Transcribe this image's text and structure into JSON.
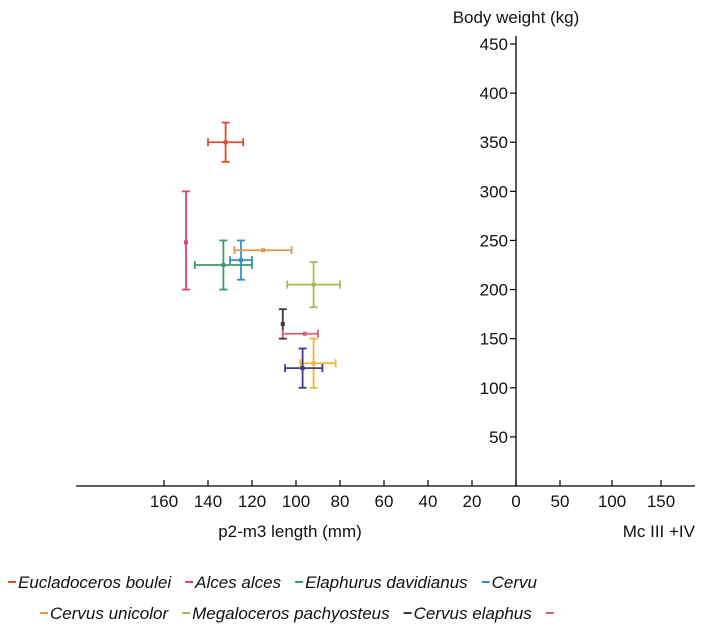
{
  "chart_data": {
    "type": "scatter",
    "x_axis_label": "p2-m3 length (mm)",
    "x_axis_label_right": "Mc III +IV",
    "y_axis_label": "Body weight (kg)",
    "x_tick_labels": [
      "160",
      "140",
      "120",
      "100",
      "80",
      "60",
      "40",
      "20",
      "0"
    ],
    "x_right_tick_labels": [
      "50",
      "100",
      "150"
    ],
    "y_tick_labels": [
      "50",
      "100",
      "150",
      "200",
      "250",
      "300",
      "350",
      "400",
      "450"
    ],
    "xlim": [
      175,
      0
    ],
    "ylim": [
      0,
      450
    ],
    "grid": false,
    "legend_position": "bottom",
    "series": [
      {
        "name": "Eucladoceros boulei",
        "color": "#d94f2b",
        "x": 132,
        "y": 350,
        "x_err": [
          140,
          124
        ],
        "y_err": [
          330,
          370
        ]
      },
      {
        "name": "Alces alces",
        "color": "#e0447f",
        "x": 150,
        "y": 248,
        "x_err": [
          150,
          150
        ],
        "y_err": [
          200,
          300
        ]
      },
      {
        "name": "Elaphurus davidianus",
        "color": "#3a9a6a",
        "x": 133,
        "y": 225,
        "x_err": [
          146,
          120
        ],
        "y_err": [
          200,
          250
        ]
      },
      {
        "name": "Cervu",
        "color": "#2f93c9",
        "x": 125,
        "y": 230,
        "x_err": [
          130,
          120
        ],
        "y_err": [
          210,
          250
        ]
      },
      {
        "name": "Cervus unicolor",
        "color": "#e8914a",
        "x": 115,
        "y": 240,
        "x_err": [
          128,
          102
        ],
        "y_err": [
          240,
          240
        ]
      },
      {
        "name": "Megaloceros pachyosteus",
        "color": "#a8b85a",
        "x": 92,
        "y": 205,
        "x_err": [
          104,
          80
        ],
        "y_err": [
          182,
          228
        ]
      },
      {
        "name": "Cervus elaphus",
        "color": "#3a3a3a",
        "x": 106,
        "y": 165,
        "x_err": [
          106,
          106
        ],
        "y_err": [
          150,
          180
        ]
      },
      {
        "name": "",
        "color": "#d9607a",
        "x": 96,
        "y": 155,
        "x_err": [
          106,
          90
        ],
        "y_err": [
          155,
          155
        ]
      },
      {
        "name": "",
        "color": "#f2b632",
        "x": 92,
        "y": 125,
        "x_err": [
          98,
          82
        ],
        "y_err": [
          100,
          150
        ]
      },
      {
        "name": "",
        "color": "#3f3a8a",
        "x": 97,
        "y": 120,
        "x_err": [
          105,
          88
        ],
        "y_err": [
          100,
          140
        ]
      }
    ],
    "legend_rows": [
      [
        {
          "label": "Eucladoceros boulei",
          "color": "#d94f2b"
        },
        {
          "label": "Alces alces",
          "color": "#e0447f"
        },
        {
          "label": "Elaphurus davidianus",
          "color": "#3a9a6a"
        },
        {
          "label": "Cervu",
          "color": "#2f93c9"
        }
      ],
      [
        {
          "label": "Cervus unicolor",
          "color": "#e8914a"
        },
        {
          "label": "Megaloceros pachyosteus",
          "color": "#a8b85a"
        },
        {
          "label": "Cervus elaphus",
          "color": "#3a3a3a"
        },
        {
          "label": "",
          "color": "#d9607a"
        }
      ]
    ]
  }
}
